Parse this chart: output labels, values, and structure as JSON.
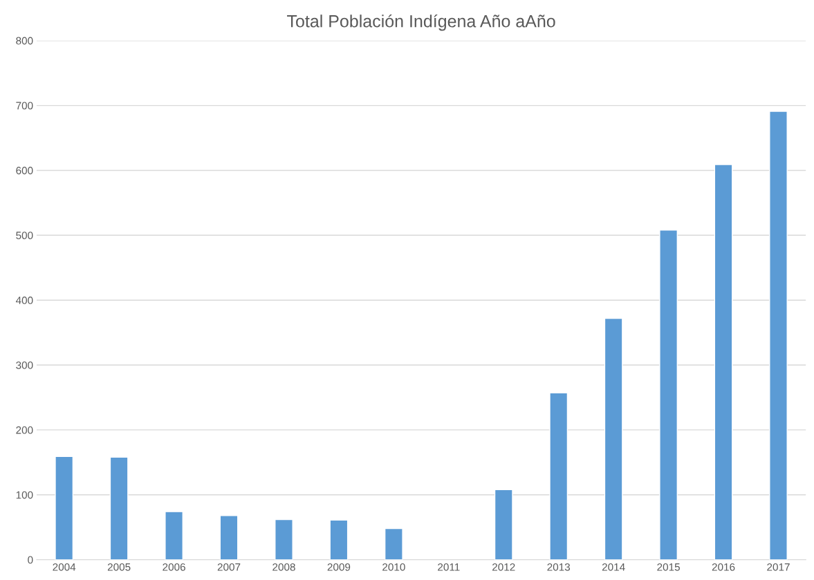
{
  "chart_data": {
    "type": "bar",
    "title": "Total Población Indígena Año aAño",
    "categories": [
      "2004",
      "2005",
      "2006",
      "2007",
      "2008",
      "2009",
      "2010",
      "2011",
      "2012",
      "2013",
      "2014",
      "2015",
      "2016",
      "2017"
    ],
    "values": [
      159,
      158,
      74,
      68,
      62,
      61,
      48,
      null,
      108,
      257,
      372,
      508,
      609,
      691
    ],
    "color": "#5b9bd5",
    "ylim": [
      0,
      800
    ],
    "yticks": [
      0,
      100,
      200,
      300,
      400,
      500,
      600,
      700,
      800
    ],
    "grid": "y"
  }
}
